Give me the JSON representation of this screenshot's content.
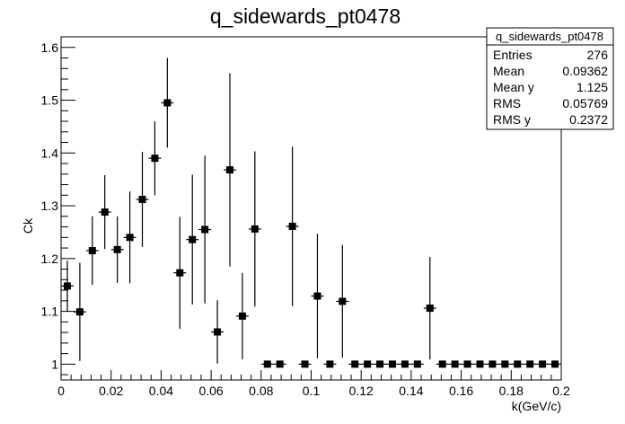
{
  "chart_data": {
    "type": "scatter",
    "title": "q_sidewards_pt0478",
    "xlabel": "k(GeV/c)",
    "ylabel": "Ck",
    "xlim": [
      0,
      0.2
    ],
    "ylim": [
      0.97,
      1.62
    ],
    "x_ticks": [
      "0",
      "0.02",
      "0.04",
      "0.06",
      "0.08",
      "0.1",
      "0.12",
      "0.14",
      "0.16",
      "0.18",
      "0.2"
    ],
    "x_tick_values": [
      0,
      0.02,
      0.04,
      0.06,
      0.08,
      0.1,
      0.12,
      0.14,
      0.16,
      0.18,
      0.2
    ],
    "y_ticks": [
      "1",
      "1.1",
      "1.2",
      "1.3",
      "1.4",
      "1.5",
      "1.6"
    ],
    "y_tick_values": [
      1.0,
      1.1,
      1.2,
      1.3,
      1.4,
      1.5,
      1.6
    ],
    "grid": false,
    "series": [
      {
        "x": [
          0.0025,
          0.0075,
          0.0125,
          0.0175,
          0.0225,
          0.0275,
          0.0325,
          0.0375,
          0.0425,
          0.0475,
          0.0525,
          0.0575,
          0.0625,
          0.0675,
          0.0725,
          0.0775,
          0.0825,
          0.0875,
          0.0925,
          0.0975,
          0.1025,
          0.1075,
          0.1125,
          0.1175,
          0.1225,
          0.1275,
          0.1325,
          0.1375,
          0.1425,
          0.1475,
          0.1525,
          0.1575,
          0.1625,
          0.1675,
          0.1725,
          0.1775,
          0.1825,
          0.1875,
          0.1925,
          0.1975
        ],
        "y": [
          1.148,
          1.099,
          1.215,
          1.288,
          1.217,
          1.24,
          1.312,
          1.39,
          1.495,
          1.173,
          1.236,
          1.255,
          1.061,
          1.368,
          1.091,
          1.256,
          1.0,
          1.0,
          1.261,
          1.0,
          1.129,
          1.0,
          1.119,
          1.0,
          1.0,
          1.0,
          1.0,
          1.0,
          1.0,
          1.106,
          1.0,
          1.0,
          1.0,
          1.0,
          1.0,
          1.0,
          1.0,
          1.0,
          1.0,
          1.0
        ],
        "err": [
          0.048,
          0.093,
          0.065,
          0.07,
          0.063,
          0.087,
          0.09,
          0.07,
          0.085,
          0.106,
          0.123,
          0.14,
          0.06,
          0.183,
          0.082,
          0.147,
          0,
          0,
          0.151,
          0,
          0.118,
          0,
          0.107,
          0,
          0,
          0,
          0,
          0,
          0,
          0.097,
          0,
          0,
          0,
          0,
          0,
          0,
          0,
          0,
          0,
          0
        ]
      }
    ]
  },
  "stats": {
    "title": "q_sidewards_pt0478",
    "rows": [
      {
        "label": "Entries",
        "value": "276"
      },
      {
        "label": "Mean",
        "value": "0.09362"
      },
      {
        "label": "Mean y",
        "value": "1.125"
      },
      {
        "label": "RMS",
        "value": "0.05769"
      },
      {
        "label": "RMS y",
        "value": "0.2372"
      }
    ]
  }
}
